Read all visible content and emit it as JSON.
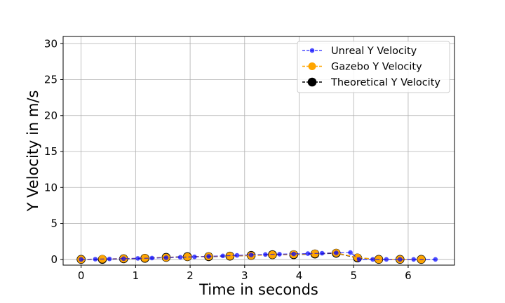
{
  "chart_data": {
    "type": "line",
    "title": "",
    "xlabel": "Time in seconds",
    "ylabel": "Y Velocity in m/s",
    "xlim": [
      -0.33,
      6.85
    ],
    "ylim": [
      -0.8,
      31
    ],
    "xticks": [
      "0",
      "1",
      "2",
      "3",
      "4",
      "5",
      "6"
    ],
    "yticks": [
      "0",
      "5",
      "10",
      "15",
      "20",
      "25",
      "30"
    ],
    "grid": true,
    "legend_position": "top-right",
    "series": [
      {
        "name": "Unreal Y Velocity",
        "color": "#0000ff",
        "marker": "circle-small",
        "linestyle": "dashed",
        "x": [
          0.0,
          0.26,
          0.52,
          0.78,
          1.04,
          1.3,
          1.56,
          1.82,
          2.08,
          2.34,
          2.6,
          2.86,
          3.12,
          3.38,
          3.64,
          3.9,
          4.16,
          4.42,
          4.68,
          4.94,
          5.1,
          5.35,
          5.6,
          5.85,
          6.1,
          6.5
        ],
        "y": [
          0.0,
          0.03,
          0.06,
          0.1,
          0.14,
          0.18,
          0.23,
          0.29,
          0.35,
          0.42,
          0.49,
          0.56,
          0.62,
          0.68,
          0.72,
          0.76,
          0.8,
          0.85,
          0.9,
          0.95,
          0.0,
          0.0,
          0.0,
          0.0,
          0.0,
          0.0
        ]
      },
      {
        "name": "Gazebo Y Velocity",
        "color": "#ffa500",
        "marker": "circle-medium",
        "linestyle": "dashed",
        "x": [
          0.0,
          0.39,
          0.78,
          1.17,
          1.56,
          1.95,
          2.34,
          2.73,
          3.12,
          3.51,
          3.9,
          4.29,
          4.68,
          5.07,
          5.46,
          5.85,
          6.24
        ],
        "y": [
          0.0,
          0.05,
          0.1,
          0.18,
          0.26,
          0.36,
          0.41,
          0.47,
          0.53,
          0.64,
          0.69,
          0.8,
          0.9,
          0.25,
          0.0,
          0.0,
          0.0
        ]
      },
      {
        "name": "Theoretical Y Velocity",
        "color": "#000000",
        "marker": "circle-large",
        "linestyle": "dashed",
        "x": [
          0.0,
          0.39,
          0.78,
          1.17,
          1.56,
          1.95,
          2.34,
          2.73,
          3.12,
          3.51,
          3.9,
          4.29,
          4.68,
          5.07,
          5.46,
          5.85,
          6.24
        ],
        "y": [
          0.0,
          0.0,
          0.08,
          0.15,
          0.28,
          0.38,
          0.38,
          0.45,
          0.55,
          0.65,
          0.65,
          0.75,
          0.85,
          0.2,
          0.0,
          0.0,
          0.0
        ]
      }
    ]
  }
}
